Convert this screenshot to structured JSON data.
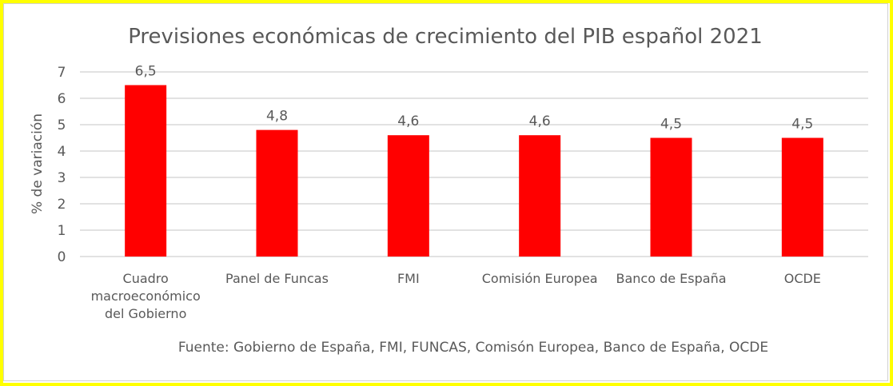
{
  "chart_data": {
    "type": "bar",
    "title": "Previsiones económicas de crecimiento del PIB español 2021",
    "xlabel": "",
    "ylabel": "% de variación",
    "categories": [
      [
        "Cuadro",
        "macroeconómico",
        "del Gobierno"
      ],
      [
        "Panel de Funcas"
      ],
      [
        "FMI"
      ],
      [
        "Comisión Europea"
      ],
      [
        "Banco de España"
      ],
      [
        "OCDE"
      ]
    ],
    "values": [
      6.5,
      4.8,
      4.6,
      4.6,
      4.5,
      4.5
    ],
    "data_labels": [
      "6,5",
      "4,8",
      "4,6",
      "4,6",
      "4,5",
      "4,5"
    ],
    "ylim": [
      0,
      7
    ],
    "yticks": [
      "0",
      "1",
      "2",
      "3",
      "4",
      "5",
      "6",
      "7"
    ],
    "grid": true,
    "legend": "none",
    "bar_color": "#ff0000",
    "border_color": "#ffff00",
    "source": "Fuente: Gobierno de España, FMI, FUNCAS, Comisón Europea, Banco de España, OCDE"
  }
}
